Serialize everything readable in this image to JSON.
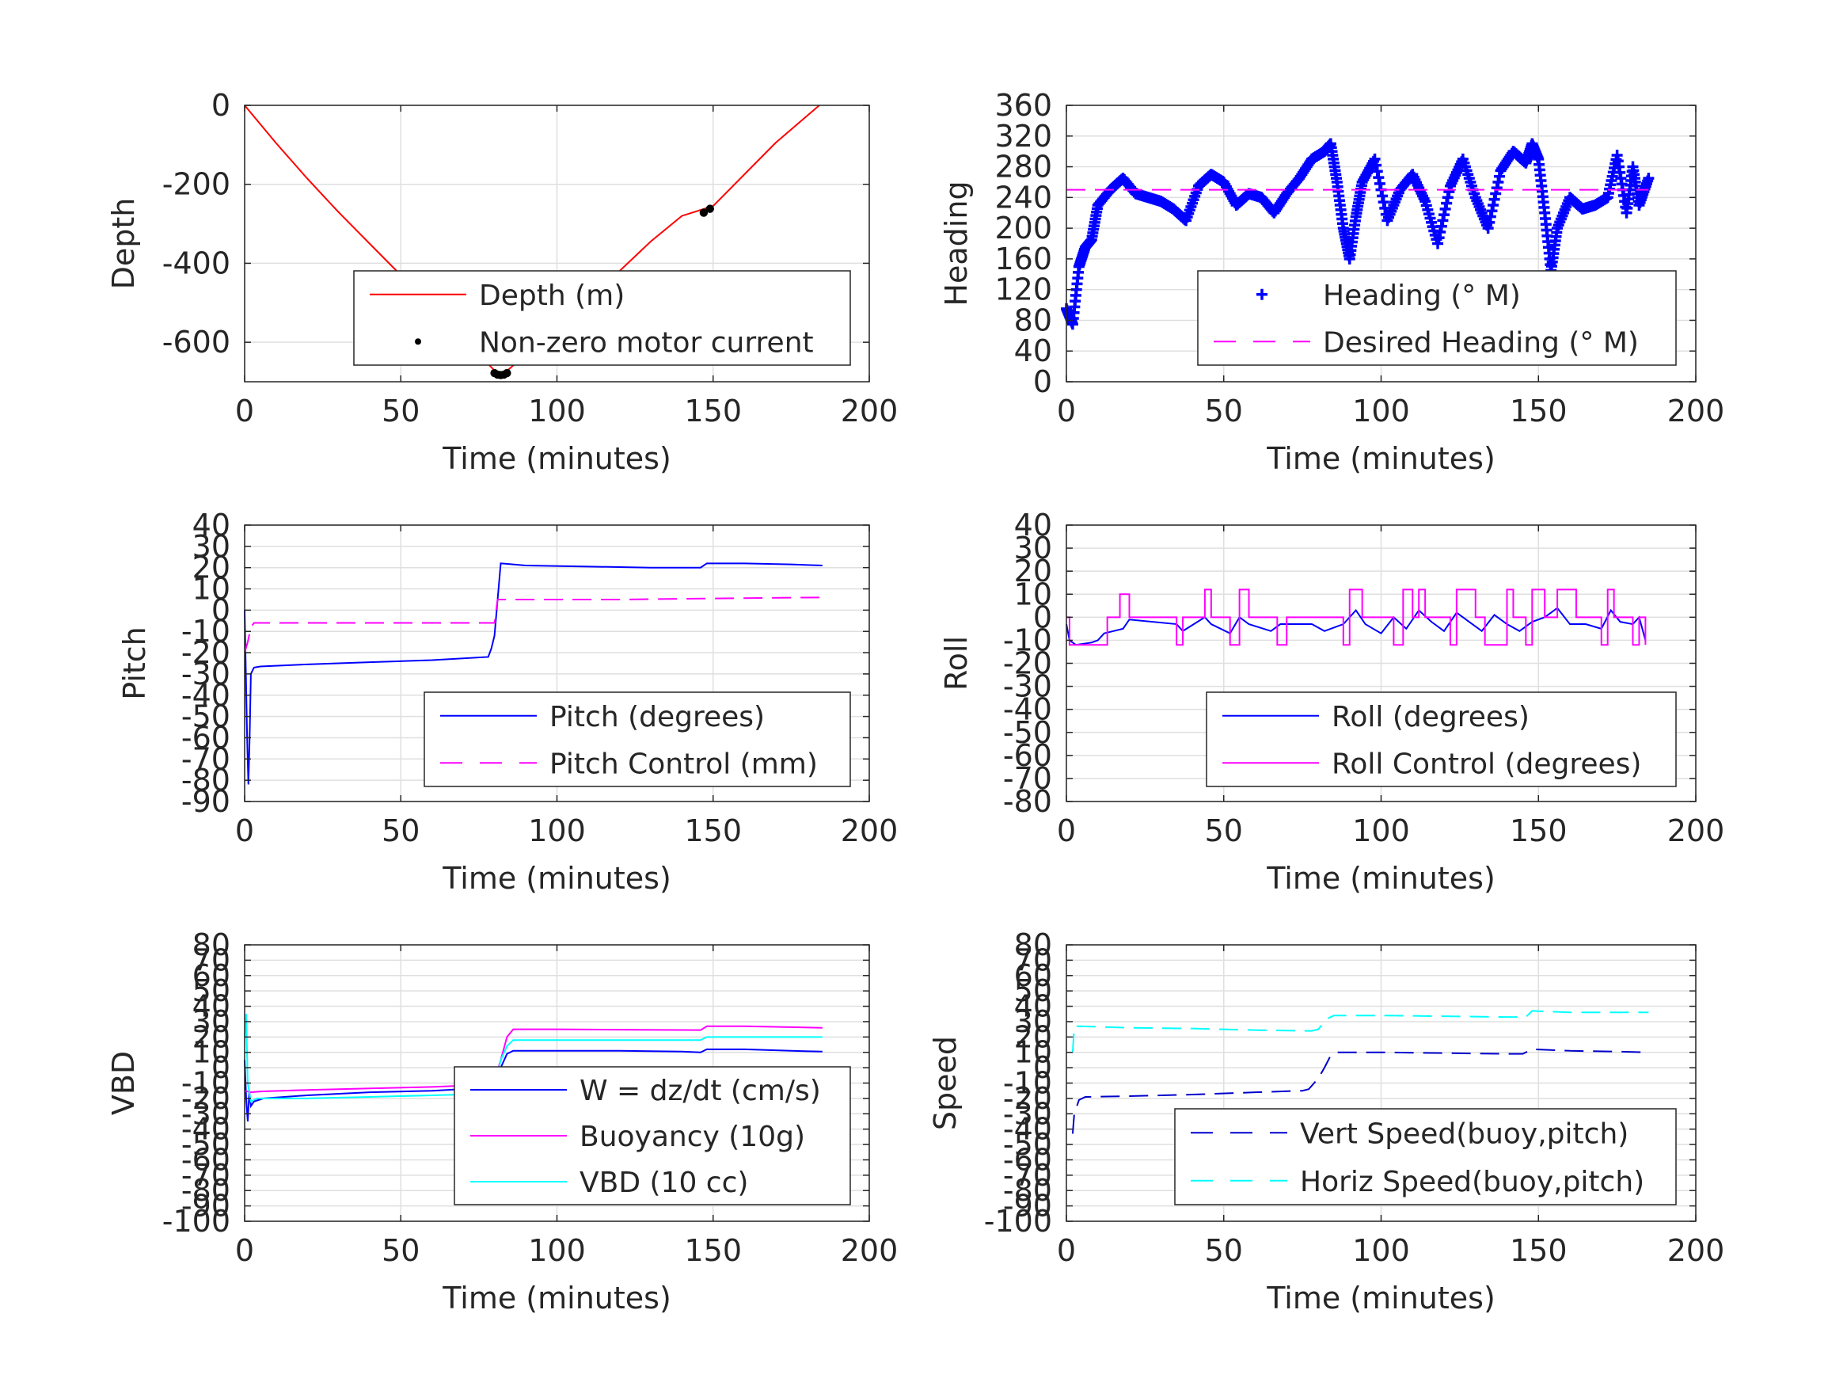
{
  "chart_data": [
    {
      "type": "line",
      "ylabel": "Depth",
      "xlabel": "Time (minutes)",
      "xlim": [
        0,
        200
      ],
      "ylim": [
        -700,
        0
      ],
      "xticks": [
        "0",
        "50",
        "100",
        "150",
        "200"
      ],
      "yticks": [
        {
          "v": 0,
          "t": "0"
        },
        {
          "v": -200,
          "t": "-200"
        },
        {
          "v": -400,
          "t": "-400"
        },
        {
          "v": -600,
          "t": "-600"
        }
      ],
      "grid": true,
      "legend_position": "lower-right",
      "series": [
        {
          "name": "Depth (m)",
          "color": "#ff0000",
          "style": "line",
          "x": [
            0,
            10,
            20,
            30,
            40,
            50,
            60,
            70,
            78,
            81,
            83,
            90,
            100,
            110,
            120,
            130,
            140,
            150,
            160,
            170,
            184
          ],
          "y": [
            0,
            -95,
            -185,
            -270,
            -350,
            -430,
            -510,
            -590,
            -655,
            -680,
            -680,
            -630,
            -560,
            -490,
            -420,
            -345,
            -280,
            -255,
            -175,
            -95,
            0
          ]
        },
        {
          "name": "Non-zero motor current",
          "color": "#000000",
          "style": "dot",
          "x": [
            80,
            81,
            82,
            83,
            84,
            147,
            149
          ],
          "y": [
            -678,
            -682,
            -683,
            -682,
            -678,
            -272,
            -262
          ]
        }
      ]
    },
    {
      "type": "line",
      "ylabel": "Heading",
      "xlabel": "Time (minutes)",
      "xlim": [
        0,
        200
      ],
      "ylim": [
        0,
        360
      ],
      "xticks": [
        "0",
        "50",
        "100",
        "150",
        "200"
      ],
      "yticks": [
        {
          "v": 0,
          "t": "0"
        },
        {
          "v": 40,
          "t": "40"
        },
        {
          "v": 80,
          "t": "80"
        },
        {
          "v": 120,
          "t": "120"
        },
        {
          "v": 160,
          "t": "160"
        },
        {
          "v": 200,
          "t": "200"
        },
        {
          "v": 240,
          "t": "240"
        },
        {
          "v": 280,
          "t": "280"
        },
        {
          "v": 320,
          "t": "320"
        },
        {
          "v": 360,
          "t": "360"
        }
      ],
      "grid": true,
      "legend_position": "lower-right",
      "series": [
        {
          "name": "Heading (° M)",
          "color": "#0000ff",
          "style": "plus",
          "x": [
            0,
            2,
            4,
            6,
            8,
            10,
            14,
            18,
            22,
            26,
            30,
            34,
            38,
            42,
            46,
            50,
            54,
            58,
            62,
            66,
            70,
            74,
            78,
            82,
            84,
            86,
            88,
            90,
            92,
            94,
            98,
            102,
            106,
            110,
            114,
            118,
            122,
            126,
            130,
            134,
            138,
            142,
            146,
            148,
            150,
            152,
            154,
            156,
            160,
            164,
            168,
            172,
            175,
            178,
            180,
            182,
            185
          ],
          "y": [
            95,
            75,
            150,
            175,
            185,
            230,
            250,
            265,
            245,
            240,
            235,
            225,
            210,
            255,
            270,
            260,
            230,
            245,
            240,
            220,
            245,
            265,
            290,
            300,
            310,
            260,
            200,
            160,
            215,
            260,
            290,
            210,
            250,
            270,
            235,
            180,
            255,
            290,
            240,
            200,
            275,
            300,
            285,
            310,
            290,
            220,
            145,
            200,
            240,
            225,
            230,
            240,
            295,
            220,
            280,
            230,
            265
          ]
        },
        {
          "name": "Desired Heading (° M)",
          "color": "#ff00ff",
          "style": "dash",
          "x": [
            0,
            185
          ],
          "y": [
            250,
            250
          ]
        }
      ]
    },
    {
      "type": "line",
      "ylabel": "Pitch",
      "xlabel": "Time (minutes)",
      "xlim": [
        0,
        200
      ],
      "ylim": [
        -90,
        40
      ],
      "xticks": [
        "0",
        "50",
        "100",
        "150",
        "200"
      ],
      "yticks": [
        {
          "v": 40,
          "t": "40"
        },
        {
          "v": 30,
          "t": "30"
        },
        {
          "v": 20,
          "t": "20"
        },
        {
          "v": 10,
          "t": "10"
        },
        {
          "v": 0,
          "t": "0"
        },
        {
          "v": -10,
          "t": "-10"
        },
        {
          "v": -20,
          "t": "-20"
        },
        {
          "v": -30,
          "t": "-30"
        },
        {
          "v": -40,
          "t": "-40"
        },
        {
          "v": -50,
          "t": "-50"
        },
        {
          "v": -60,
          "t": "-60"
        },
        {
          "v": -70,
          "t": "-70"
        },
        {
          "v": -80,
          "t": "-80"
        },
        {
          "v": -90,
          "t": "-90"
        }
      ],
      "grid": true,
      "legend_position": "lower-right",
      "series": [
        {
          "name": "Pitch (degrees)",
          "color": "#0000ff",
          "style": "line",
          "x": [
            0,
            0.8,
            1.2,
            1.6,
            2,
            3,
            5,
            20,
            40,
            60,
            78,
            79,
            80,
            81,
            82,
            90,
            110,
            130,
            146,
            148,
            160,
            175,
            185
          ],
          "y": [
            0,
            -60,
            -82,
            -60,
            -30,
            -27,
            -26.5,
            -25.5,
            -24.5,
            -23.5,
            -22,
            -18,
            -12,
            5,
            22,
            21,
            20.5,
            20,
            20,
            22,
            22,
            21.5,
            21
          ]
        },
        {
          "name": "Pitch Control (mm)",
          "color": "#ff00ff",
          "style": "dash",
          "x": [
            0,
            1,
            2,
            3,
            20,
            50,
            80,
            81,
            82,
            120,
            150,
            185
          ],
          "y": [
            -20,
            -15,
            -8,
            -6,
            -6,
            -6,
            -6,
            5,
            5,
            5,
            5.5,
            6
          ]
        }
      ]
    },
    {
      "type": "line",
      "ylabel": "Roll",
      "xlabel": "Time (minutes)",
      "xlim": [
        0,
        200
      ],
      "ylim": [
        -80,
        40
      ],
      "xticks": [
        "0",
        "50",
        "100",
        "150",
        "200"
      ],
      "yticks": [
        {
          "v": 40,
          "t": "40"
        },
        {
          "v": 30,
          "t": "30"
        },
        {
          "v": 20,
          "t": "20"
        },
        {
          "v": 10,
          "t": "10"
        },
        {
          "v": 0,
          "t": "0"
        },
        {
          "v": -10,
          "t": "-10"
        },
        {
          "v": -20,
          "t": "-20"
        },
        {
          "v": -30,
          "t": "-30"
        },
        {
          "v": -40,
          "t": "-40"
        },
        {
          "v": -50,
          "t": "-50"
        },
        {
          "v": -60,
          "t": "-60"
        },
        {
          "v": -70,
          "t": "-70"
        },
        {
          "v": -80,
          "t": "-80"
        }
      ],
      "grid": true,
      "legend_position": "lower-right",
      "series": [
        {
          "name": "Roll (degrees)",
          "color": "#0000ff",
          "style": "line",
          "x": [
            0,
            1,
            3,
            8,
            10,
            12,
            18,
            20,
            35,
            37,
            44,
            46,
            52,
            55,
            58,
            65,
            68,
            78,
            82,
            88,
            92,
            95,
            100,
            104,
            108,
            112,
            116,
            120,
            124,
            128,
            132,
            136,
            140,
            144,
            148,
            152,
            156,
            160,
            165,
            170,
            173,
            176,
            180,
            182,
            184
          ],
          "y": [
            -3,
            -10,
            -12,
            -11,
            -10,
            -7,
            -5,
            -1,
            -3,
            -6,
            0,
            -3,
            -7,
            0,
            -3,
            -6,
            -3,
            -3,
            -6,
            -3,
            3,
            -3,
            -7,
            0,
            -5,
            3,
            -2,
            -6,
            2,
            -2,
            -6,
            1,
            -3,
            -6,
            -2,
            0,
            4,
            -3,
            -3,
            -5,
            3,
            -2,
            -3,
            0,
            -10
          ]
        },
        {
          "name": "Roll Control (degrees)",
          "color": "#ff00ff",
          "style": "step",
          "x": [
            0,
            1,
            3,
            10,
            13,
            17,
            19,
            20,
            35,
            37,
            44,
            46,
            52,
            55,
            58,
            67,
            70,
            88,
            90,
            92,
            94,
            104,
            107,
            110,
            112,
            114,
            122,
            124,
            130,
            133,
            140,
            142,
            146,
            148,
            152,
            156,
            162,
            170,
            172,
            174,
            180,
            182,
            184
          ],
          "y": [
            0,
            -12,
            -12,
            -12,
            0,
            10,
            10,
            0,
            -12,
            0,
            12,
            0,
            -12,
            12,
            0,
            -12,
            0,
            -12,
            12,
            12,
            0,
            -12,
            12,
            0,
            12,
            0,
            -12,
            12,
            0,
            -12,
            12,
            0,
            -12,
            12,
            0,
            12,
            0,
            -12,
            12,
            0,
            -12,
            0,
            -12
          ]
        }
      ]
    },
    {
      "type": "line",
      "ylabel": "VBD",
      "xlabel": "Time (minutes)",
      "xlim": [
        0,
        200
      ],
      "ylim": [
        -100,
        80
      ],
      "xticks": [
        "0",
        "50",
        "100",
        "150",
        "200"
      ],
      "yticks": [
        {
          "v": -100,
          "t": "-100"
        },
        {
          "v": -90,
          "t": "-90"
        },
        {
          "v": -80,
          "t": "-80"
        },
        {
          "v": -70,
          "t": "-70"
        },
        {
          "v": -60,
          "t": "-60"
        },
        {
          "v": -50,
          "t": "-50"
        },
        {
          "v": -40,
          "t": "-40"
        },
        {
          "v": -30,
          "t": "-30"
        },
        {
          "v": -20,
          "t": "-20"
        },
        {
          "v": -10,
          "t": "-10"
        },
        {
          "v": 0,
          "t": "0"
        },
        {
          "v": 10,
          "t": "10"
        },
        {
          "v": 20,
          "t": "20"
        },
        {
          "v": 30,
          "t": "30"
        },
        {
          "v": 40,
          "t": "40"
        },
        {
          "v": 50,
          "t": "50"
        },
        {
          "v": 60,
          "t": "60"
        },
        {
          "v": 70,
          "t": "70"
        },
        {
          "v": 80,
          "t": "80"
        }
      ],
      "grid": true,
      "legend_position": "lower-right",
      "series": [
        {
          "name": "W = dz/dt (cm/s)",
          "color": "#0000ff",
          "style": "line",
          "x": [
            0,
            0.5,
            1,
            1.5,
            2,
            3,
            6,
            20,
            40,
            60,
            78,
            80,
            82,
            84,
            86,
            100,
            120,
            140,
            146,
            148,
            160,
            175,
            185
          ],
          "y": [
            5,
            -20,
            -35,
            -15,
            -25,
            -22,
            -20,
            -18,
            -16,
            -15,
            -13,
            -10,
            0,
            9,
            11,
            11,
            11,
            10.5,
            10,
            12,
            12,
            11,
            10.5
          ]
        },
        {
          "name": "Buoyancy (10g)",
          "color": "#ff00ff",
          "style": "line",
          "x": [
            0,
            2,
            5,
            20,
            40,
            60,
            78,
            80,
            82,
            84,
            86,
            100,
            146,
            148,
            160,
            185
          ],
          "y": [
            -15,
            -16,
            -15.5,
            -14.5,
            -13.5,
            -12.5,
            -11,
            -8,
            5,
            20,
            25,
            25,
            24.5,
            27,
            27,
            26
          ]
        },
        {
          "name": "VBD (10 cc)",
          "color": "#00ffff",
          "style": "line",
          "x": [
            0,
            0.5,
            1,
            2,
            4,
            20,
            40,
            60,
            78,
            80,
            82,
            84,
            86,
            100,
            146,
            148,
            160,
            185
          ],
          "y": [
            20,
            35,
            -10,
            -22,
            -20,
            -20,
            -19,
            -18,
            -17,
            -12,
            5,
            14,
            18,
            18,
            18,
            20,
            20,
            20
          ]
        }
      ]
    },
    {
      "type": "line",
      "ylabel": "Speed",
      "xlabel": "Time (minutes)",
      "xlim": [
        0,
        200
      ],
      "ylim": [
        -100,
        80
      ],
      "xticks": [
        "0",
        "50",
        "100",
        "150",
        "200"
      ],
      "yticks": [
        {
          "v": -100,
          "t": "-100"
        },
        {
          "v": -90,
          "t": "-90"
        },
        {
          "v": -80,
          "t": "-80"
        },
        {
          "v": -70,
          "t": "-70"
        },
        {
          "v": -60,
          "t": "-60"
        },
        {
          "v": -50,
          "t": "-50"
        },
        {
          "v": -40,
          "t": "-40"
        },
        {
          "v": -30,
          "t": "-30"
        },
        {
          "v": -20,
          "t": "-20"
        },
        {
          "v": -10,
          "t": "-10"
        },
        {
          "v": 0,
          "t": "0"
        },
        {
          "v": 10,
          "t": "10"
        },
        {
          "v": 20,
          "t": "20"
        },
        {
          "v": 30,
          "t": "30"
        },
        {
          "v": 40,
          "t": "40"
        },
        {
          "v": 50,
          "t": "50"
        },
        {
          "v": 60,
          "t": "60"
        },
        {
          "v": 70,
          "t": "70"
        },
        {
          "v": 80,
          "t": "80"
        }
      ],
      "grid": true,
      "legend_position": "lower-right",
      "series": [
        {
          "name": "Vert Speed(buoy,pitch)",
          "color": "#0000cc",
          "style": "dash",
          "x": [
            2,
            2.5,
            4,
            6,
            20,
            40,
            60,
            75,
            77,
            80,
            82,
            84,
            86,
            100,
            120,
            140,
            145,
            148,
            160,
            175,
            185
          ],
          "y": [
            -43,
            -30,
            -21,
            -19,
            -18.5,
            -17.5,
            -16,
            -15,
            -14,
            -7,
            0,
            8,
            10,
            10,
            9.5,
            9,
            9,
            12,
            11,
            10.5,
            10
          ]
        },
        {
          "name": "Horiz Speed(buoy,pitch)",
          "color": "#00ffff",
          "style": "dash",
          "x": [
            2,
            2.5,
            4,
            20,
            40,
            60,
            75,
            78,
            80,
            83,
            85,
            100,
            120,
            140,
            146,
            148,
            160,
            175,
            185
          ],
          "y": [
            10,
            27,
            27,
            26,
            25.5,
            24.5,
            24,
            24,
            25,
            32,
            34,
            34,
            33.5,
            33,
            33,
            37,
            36,
            36,
            36
          ]
        }
      ]
    }
  ]
}
